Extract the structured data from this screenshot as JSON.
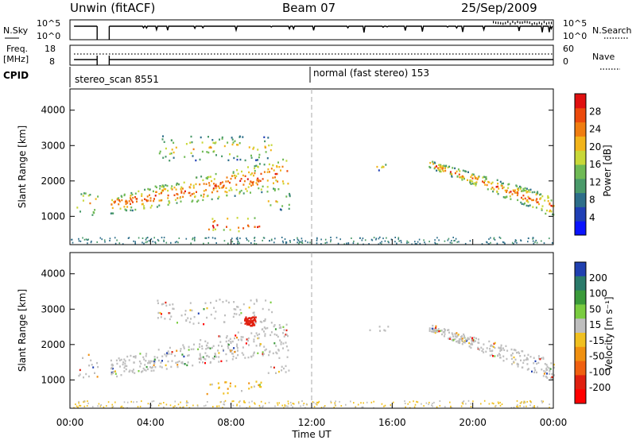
{
  "header": {
    "site": "Unwin (fitACF)",
    "beam": "Beam 07",
    "date": "25/Sep/2009"
  },
  "noise_panel": {
    "left_label": "N.Sky",
    "left_ticks": [
      "10^5",
      "10^0"
    ],
    "right_label": "N.Search",
    "right_ticks": [
      "10^5",
      "10^0"
    ]
  },
  "freq_panel": {
    "left_label_line1": "Freq.",
    "left_label_line2": "[MHz]",
    "left_ticks": [
      "18",
      "8"
    ],
    "right_label": "Nave",
    "right_ticks": [
      "60",
      "0"
    ]
  },
  "cpid": {
    "label": "CPID",
    "segments": [
      {
        "text": "stereo_scan 8551",
        "start_hour": 0
      },
      {
        "text": "normal (fast stereo) 153",
        "start_hour": 12
      }
    ]
  },
  "chart_data": [
    {
      "type": "heatmap",
      "name": "power",
      "ylabel": "Slant Range [km]",
      "ylim": [
        200,
        4600
      ],
      "yticks": [
        1000,
        2000,
        3000,
        4000
      ],
      "xlim_hours": [
        0,
        24
      ],
      "colorbar": {
        "label": "Power [dB]",
        "ticks": [
          "4",
          "8",
          "12",
          "16",
          "20",
          "24",
          "28"
        ],
        "colors": [
          "#0a14ff",
          "#1f3fb5",
          "#2d6e8a",
          "#4a9a6a",
          "#6fba55",
          "#c8d838",
          "#f2b41a",
          "#f07d10",
          "#ec4a0c",
          "#e01010"
        ]
      },
      "scatter_regions": [
        {
          "t_start": 0.3,
          "t_end": 1.35,
          "r_low": 1050,
          "r_high": 1750,
          "level": 0.45
        },
        {
          "t_start": 2.0,
          "t_end": 10.8,
          "r_low": 1100,
          "r_high": 2700,
          "level": 0.62
        },
        {
          "t_start": 6.7,
          "t_end": 9.5,
          "r_low": 600,
          "r_high": 1000,
          "level": 0.85
        },
        {
          "t_start": 4.3,
          "t_end": 10.0,
          "r_low": 2600,
          "r_high": 3300,
          "level": 0.35
        },
        {
          "t_start": 9.8,
          "t_end": 11.0,
          "r_low": 1200,
          "r_high": 1700,
          "level": 0.3
        },
        {
          "t_start": 14.8,
          "t_end": 15.8,
          "r_low": 2300,
          "r_high": 2550,
          "level": 0.25
        },
        {
          "t_start": 17.8,
          "t_end": 24.0,
          "r_low": 900,
          "r_high": 2600,
          "level": 0.55
        }
      ]
    },
    {
      "type": "heatmap",
      "name": "velocity",
      "ylabel": "Slant Range [km]",
      "ylim": [
        200,
        4600
      ],
      "yticks": [
        1000,
        2000,
        3000,
        4000
      ],
      "xlim_hours": [
        0,
        24
      ],
      "xlabel": "Time UT",
      "xticks": [
        "00:00",
        "04:00",
        "08:00",
        "12:00",
        "16:00",
        "20:00",
        "00:00"
      ],
      "colorbar": {
        "label": "Velocity [m s⁻¹]",
        "ticks": [
          "200",
          "100",
          "50",
          "15",
          "-15",
          "-50",
          "-100",
          "-200"
        ],
        "colors": [
          "#2040b0",
          "#2a7a6a",
          "#3a9a3a",
          "#7acc40",
          "#bebebe",
          "#f0c020",
          "#f09010",
          "#f06010",
          "#e02010",
          "#ff0000"
        ]
      }
    }
  ]
}
